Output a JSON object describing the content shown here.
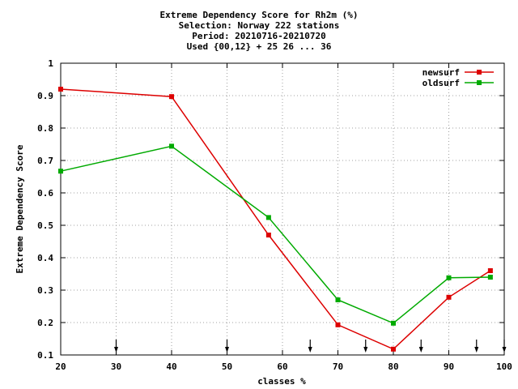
{
  "chart_data": {
    "type": "line",
    "title_lines": [
      "Extreme Dependency Score  for Rh2m (%)",
      "Selection: Norway    222 stations",
      "Period: 20210716-20210720",
      "Used {00,12} + 25 26 ... 36"
    ],
    "xlabel": "classes %",
    "ylabel": "Extreme Dependency Score",
    "xlim": [
      20,
      100
    ],
    "ylim": [
      0.1,
      1.0
    ],
    "x_ticks": [
      20,
      30,
      40,
      50,
      60,
      70,
      80,
      90,
      100
    ],
    "x_tick_labels": [
      "20",
      "30",
      "40",
      "50",
      "60",
      "70",
      "80",
      "90",
      "100"
    ],
    "y_ticks": [
      0.1,
      0.2,
      0.3,
      0.4,
      0.5,
      0.6,
      0.7,
      0.8,
      0.9,
      1.0
    ],
    "y_tick_labels": [
      "0.1",
      "0.2",
      "0.3",
      "0.4",
      "0.5",
      "0.6",
      "0.7",
      "0.8",
      "0.9",
      "1"
    ],
    "grid": true,
    "legend_position": "top-right",
    "class_markers_x": [
      30,
      50,
      65,
      75,
      85,
      95,
      100
    ],
    "series": [
      {
        "name": "newsurf",
        "color": "#dd0000",
        "x": [
          20,
          40,
          57.5,
          70,
          80,
          90,
          97.5
        ],
        "y": [
          0.92,
          0.897,
          0.47,
          0.193,
          0.118,
          0.278,
          0.36
        ]
      },
      {
        "name": "oldsurf",
        "color": "#00aa00",
        "x": [
          20,
          40,
          57.5,
          70,
          80,
          90,
          97.5
        ],
        "y": [
          0.667,
          0.744,
          0.524,
          0.27,
          0.198,
          0.338,
          0.34
        ]
      }
    ]
  }
}
